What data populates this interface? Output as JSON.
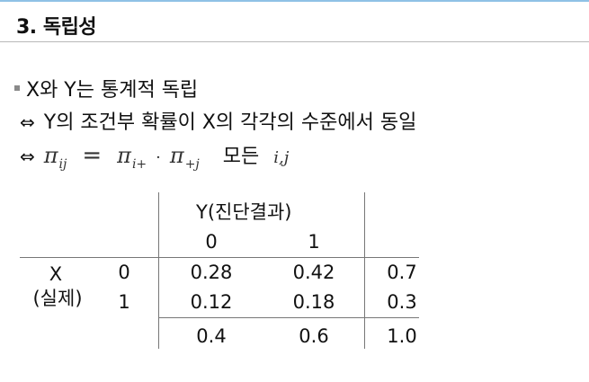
{
  "slide": {
    "title": "3. 독립성",
    "bullet": "X와 Y는 통계적 독립",
    "line1_symbol": "⇔",
    "line1_text": "Y의 조건부 확률이 X의 각각의 수준에서 동일",
    "line2_symbol": "⇔",
    "formula": {
      "pi": "π",
      "sub_ij": "ij",
      "equals": "=",
      "sub_iplus": "i+",
      "dot": "·",
      "sub_plusj": "+j",
      "word_all": "모든",
      "indices": "i,j"
    }
  },
  "table": {
    "col_header": "Y(진단결과)",
    "col_values": [
      "0",
      "1"
    ],
    "row_header_line1": "X",
    "row_header_line2": "(실제)",
    "row_values": [
      "0",
      "1"
    ],
    "cells": [
      [
        "0.28",
        "0.42",
        "0.7"
      ],
      [
        "0.12",
        "0.18",
        "0.3"
      ]
    ],
    "col_totals": [
      "0.4",
      "0.6",
      "1.0"
    ]
  },
  "colors": {
    "accent_rule": "#8fc1e6",
    "bullet": "#8a8a8a",
    "lines": "#777777"
  }
}
